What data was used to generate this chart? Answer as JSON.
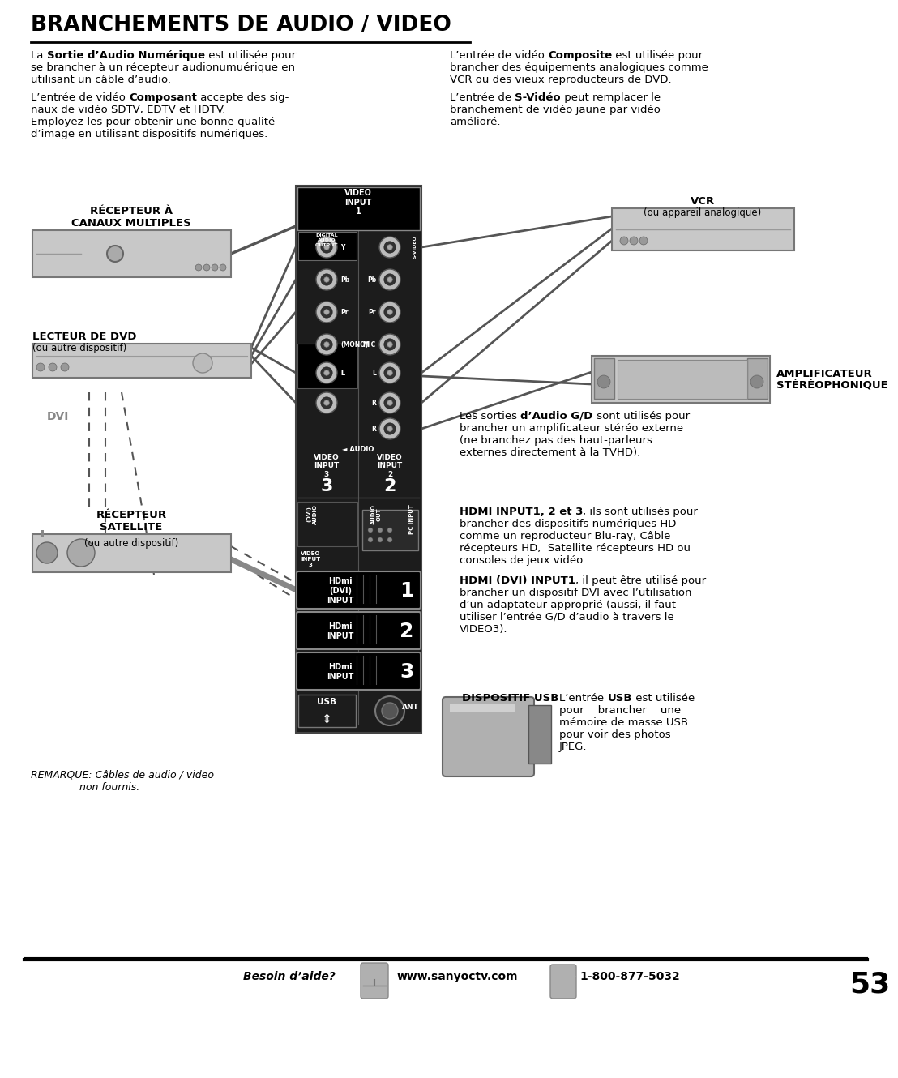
{
  "title": "BRANCHEMENTS DE AUDIO / VIDEO",
  "bg_color": "#ffffff",
  "footer_text": "Besoin d’aide?",
  "footer_web": "www.sanyoctv.com",
  "footer_phone": "1-800-877-5032",
  "footer_page": "53",
  "label_recepteur": "RÉCEPTEUR À\nCANAUX MULTIPLES",
  "label_lecteur": "LECTEUR DE DVD",
  "label_lecteur2": "(ou autre dispositif)",
  "label_dvi": "DVI",
  "label_recepteur_sat": "RÉCEPTEUR\nSATELLITE",
  "label_recepteur_sat2": "(ou autre dispositif)",
  "label_vcr": "VCR",
  "label_vcr2": "(ou appareil analogique)",
  "label_ampli_line1": "AMPLIFICATEUR",
  "label_ampli_line2": "STÉRÉOPHONIQUE",
  "label_remarque": "REMARQUE: Câbles de audio / video\nnon fournis.",
  "label_usb_title": "DISPOSITIF USB"
}
